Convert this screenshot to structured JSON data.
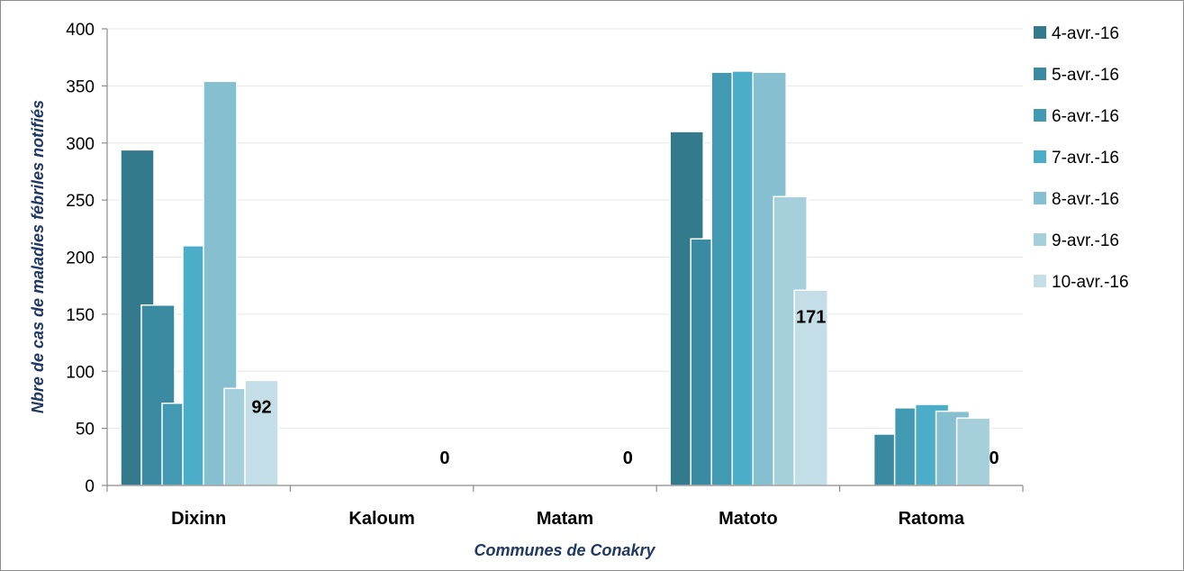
{
  "chart_data": {
    "type": "bar",
    "title": "",
    "xlabel": "Communes de Conakry",
    "ylabel": "Nbre de cas de maladies fébriles notifiés",
    "ylim": [
      0,
      400
    ],
    "yticks": [
      0,
      50,
      100,
      150,
      200,
      250,
      300,
      350,
      400
    ],
    "categories": [
      "Dixinn",
      "Kaloum",
      "Matam",
      "Matoto",
      "Ratoma"
    ],
    "legend_position": "right",
    "grid": true,
    "series": [
      {
        "name": "4-avr.-16",
        "color": "#337a8c",
        "values": [
          294,
          0,
          0,
          310,
          0
        ]
      },
      {
        "name": "5-avr.-16",
        "color": "#3a8ba1",
        "values": [
          158,
          0,
          0,
          216,
          45
        ]
      },
      {
        "name": "6-avr.-16",
        "color": "#4299b2",
        "values": [
          72,
          0,
          0,
          362,
          68
        ]
      },
      {
        "name": "7-avr.-16",
        "color": "#4badc7",
        "values": [
          210,
          0,
          0,
          363,
          71
        ]
      },
      {
        "name": "8-avr.-16",
        "color": "#85bfd0",
        "values": [
          354,
          0,
          0,
          362,
          65
        ]
      },
      {
        "name": "9-avr.-16",
        "color": "#a6cfdc",
        "values": [
          85,
          0,
          0,
          253,
          59
        ]
      },
      {
        "name": "10-avr.-16",
        "color": "#c4dee8",
        "values": [
          92,
          0,
          0,
          171,
          0
        ]
      }
    ],
    "data_labels": [
      {
        "category_index": 0,
        "series_index": 6,
        "text": "92"
      },
      {
        "category_index": 1,
        "series_index": 6,
        "text": "0"
      },
      {
        "category_index": 2,
        "series_index": 6,
        "text": "0"
      },
      {
        "category_index": 3,
        "series_index": 6,
        "text": "171"
      },
      {
        "category_index": 4,
        "series_index": 6,
        "text": "0"
      }
    ]
  }
}
